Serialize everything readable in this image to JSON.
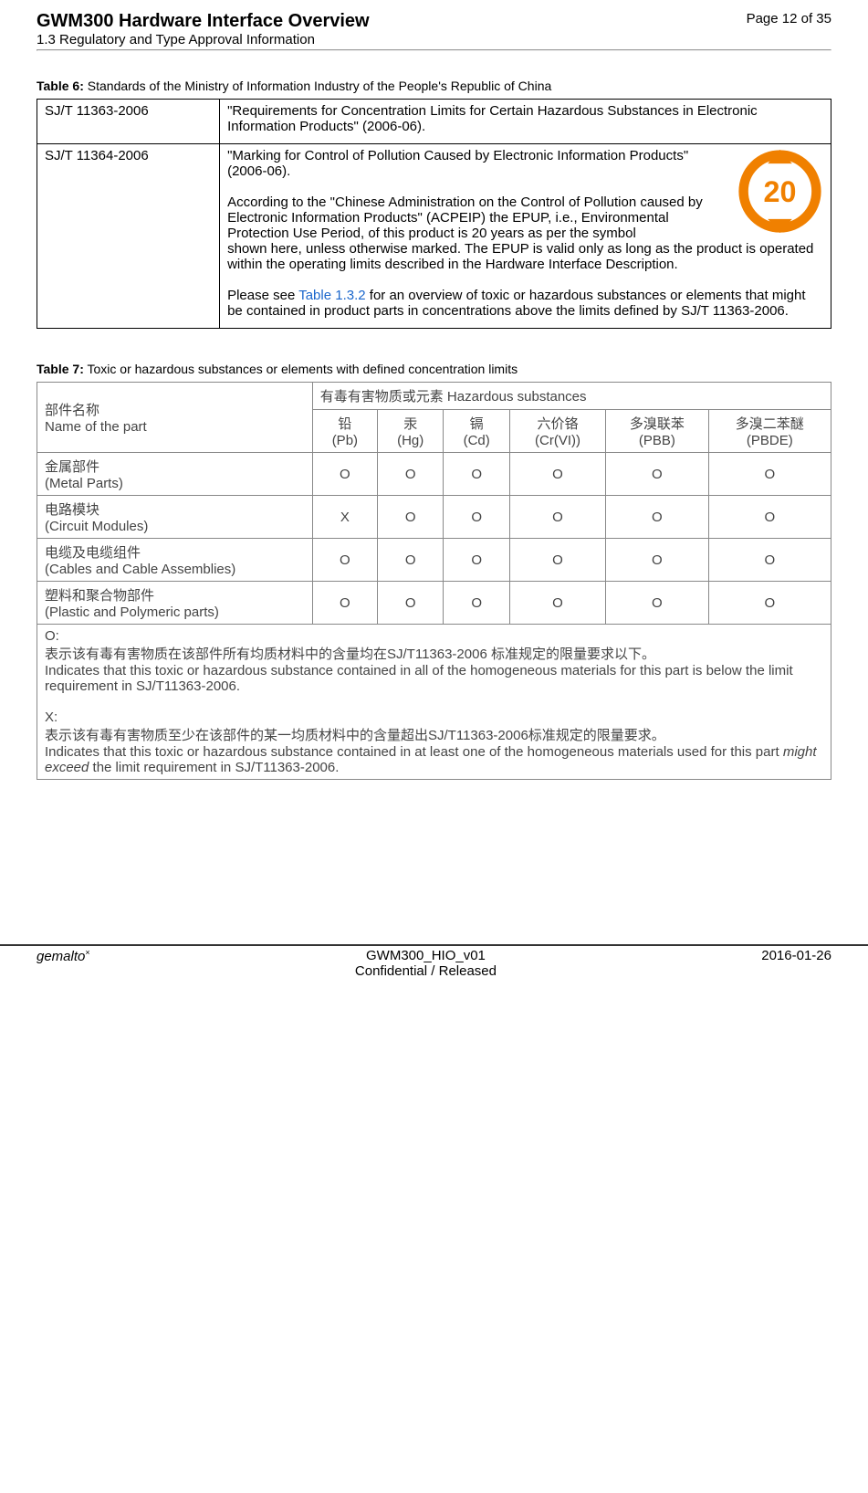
{
  "header": {
    "title": "GWM300 Hardware Interface Overview",
    "subtitle": "1.3 Regulatory and Type Approval Information",
    "page": "Page 12 of 35"
  },
  "table6": {
    "caption_label": "Table 6:",
    "caption_text": "Standards of the Ministry of Information Industry of the People's Republic of China",
    "row1_a": "SJ/T 11363-2006",
    "row1_b": "\"Requirements for Concentration Limits for Certain Hazardous Substances in Electronic Information Products\" (2006-06).",
    "row2_a": "SJ/T 11364-2006",
    "row2_b1": "\"Marking for Control of Pollution Caused by Electronic Information Products\" (2006-06).",
    "row2_b2": "According to the \"Chinese Administration on the Control of Pollution caused by Electronic Information Products\" (ACPEIP) the EPUP, i.e., Environmental Protection Use Period, of this product is 20 years as per the symbol",
    "row2_b2b": "shown here, unless otherwise marked. The EPUP is valid only as long as the product is operated within the operating limits described in the Hardware Interface Description.",
    "row2_b3a": "Please see ",
    "row2_b3link": "Table 1.3.2",
    "row2_b3b": " for an overview of toxic or hazardous substances or elements that might be contained in product parts in concentrations above the limits defined by SJ/T 11363-2006.",
    "epup_number": "20",
    "epup_color": "#f08000"
  },
  "table7": {
    "caption_label": "Table 7:",
    "caption_text": "Toxic or hazardous substances or elements with defined concentration limits",
    "head_part_cn": "部件名称",
    "head_part_en": "Name of the part",
    "head_haz_cn": "有毒有害物质或元素 Hazardous substances",
    "cols": [
      {
        "cn": "铅",
        "sym": "(Pb)"
      },
      {
        "cn": "汞",
        "sym": "(Hg)"
      },
      {
        "cn": "镉",
        "sym": "(Cd)"
      },
      {
        "cn": "六价铬",
        "sym": "(Cr(VI))"
      },
      {
        "cn": "多溴联苯",
        "sym": "(PBB)"
      },
      {
        "cn": "多溴二苯醚",
        "sym": "(PBDE)"
      }
    ],
    "rows": [
      {
        "cn": "金属部件",
        "en": "(Metal Parts)",
        "vals": [
          "O",
          "O",
          "O",
          "O",
          "O",
          "O"
        ]
      },
      {
        "cn": "电路模块",
        "en": "(Circuit Modules)",
        "vals": [
          "X",
          "O",
          "O",
          "O",
          "O",
          "O"
        ]
      },
      {
        "cn": "电缆及电缆组件",
        "en": "(Cables and Cable Assemblies)",
        "vals": [
          "O",
          "O",
          "O",
          "O",
          "O",
          "O"
        ]
      },
      {
        "cn": "塑料和聚合物部件",
        "en": "(Plastic and Polymeric parts)",
        "vals": [
          "O",
          "O",
          "O",
          "O",
          "O",
          "O"
        ]
      }
    ],
    "note_o_label": "O:",
    "note_o_cn": "表示该有毒有害物质在该部件所有均质材料中的含量均在SJ/T11363-2006 标准规定的限量要求以下。",
    "note_o_en": "Indicates that this toxic or hazardous substance contained in all of the homogeneous materials for this part is below the limit requirement in SJ/T11363-2006.",
    "note_x_label": "X:",
    "note_x_cn": "表示该有毒有害物质至少在该部件的某一均质材料中的含量超出SJ/T11363-2006标准规定的限量要求。",
    "note_x_en_a": "Indicates that this toxic or hazardous substance contained in at least one of the homogeneous materials used for this part ",
    "note_x_en_i": "might exceed",
    "note_x_en_b": " the limit requirement in SJ/T11363-2006."
  },
  "footer": {
    "brand": "gemalto",
    "brand_sup": "×",
    "doc": "GWM300_HIO_v01",
    "conf": "Confidential / Released",
    "date": "2016-01-26"
  }
}
